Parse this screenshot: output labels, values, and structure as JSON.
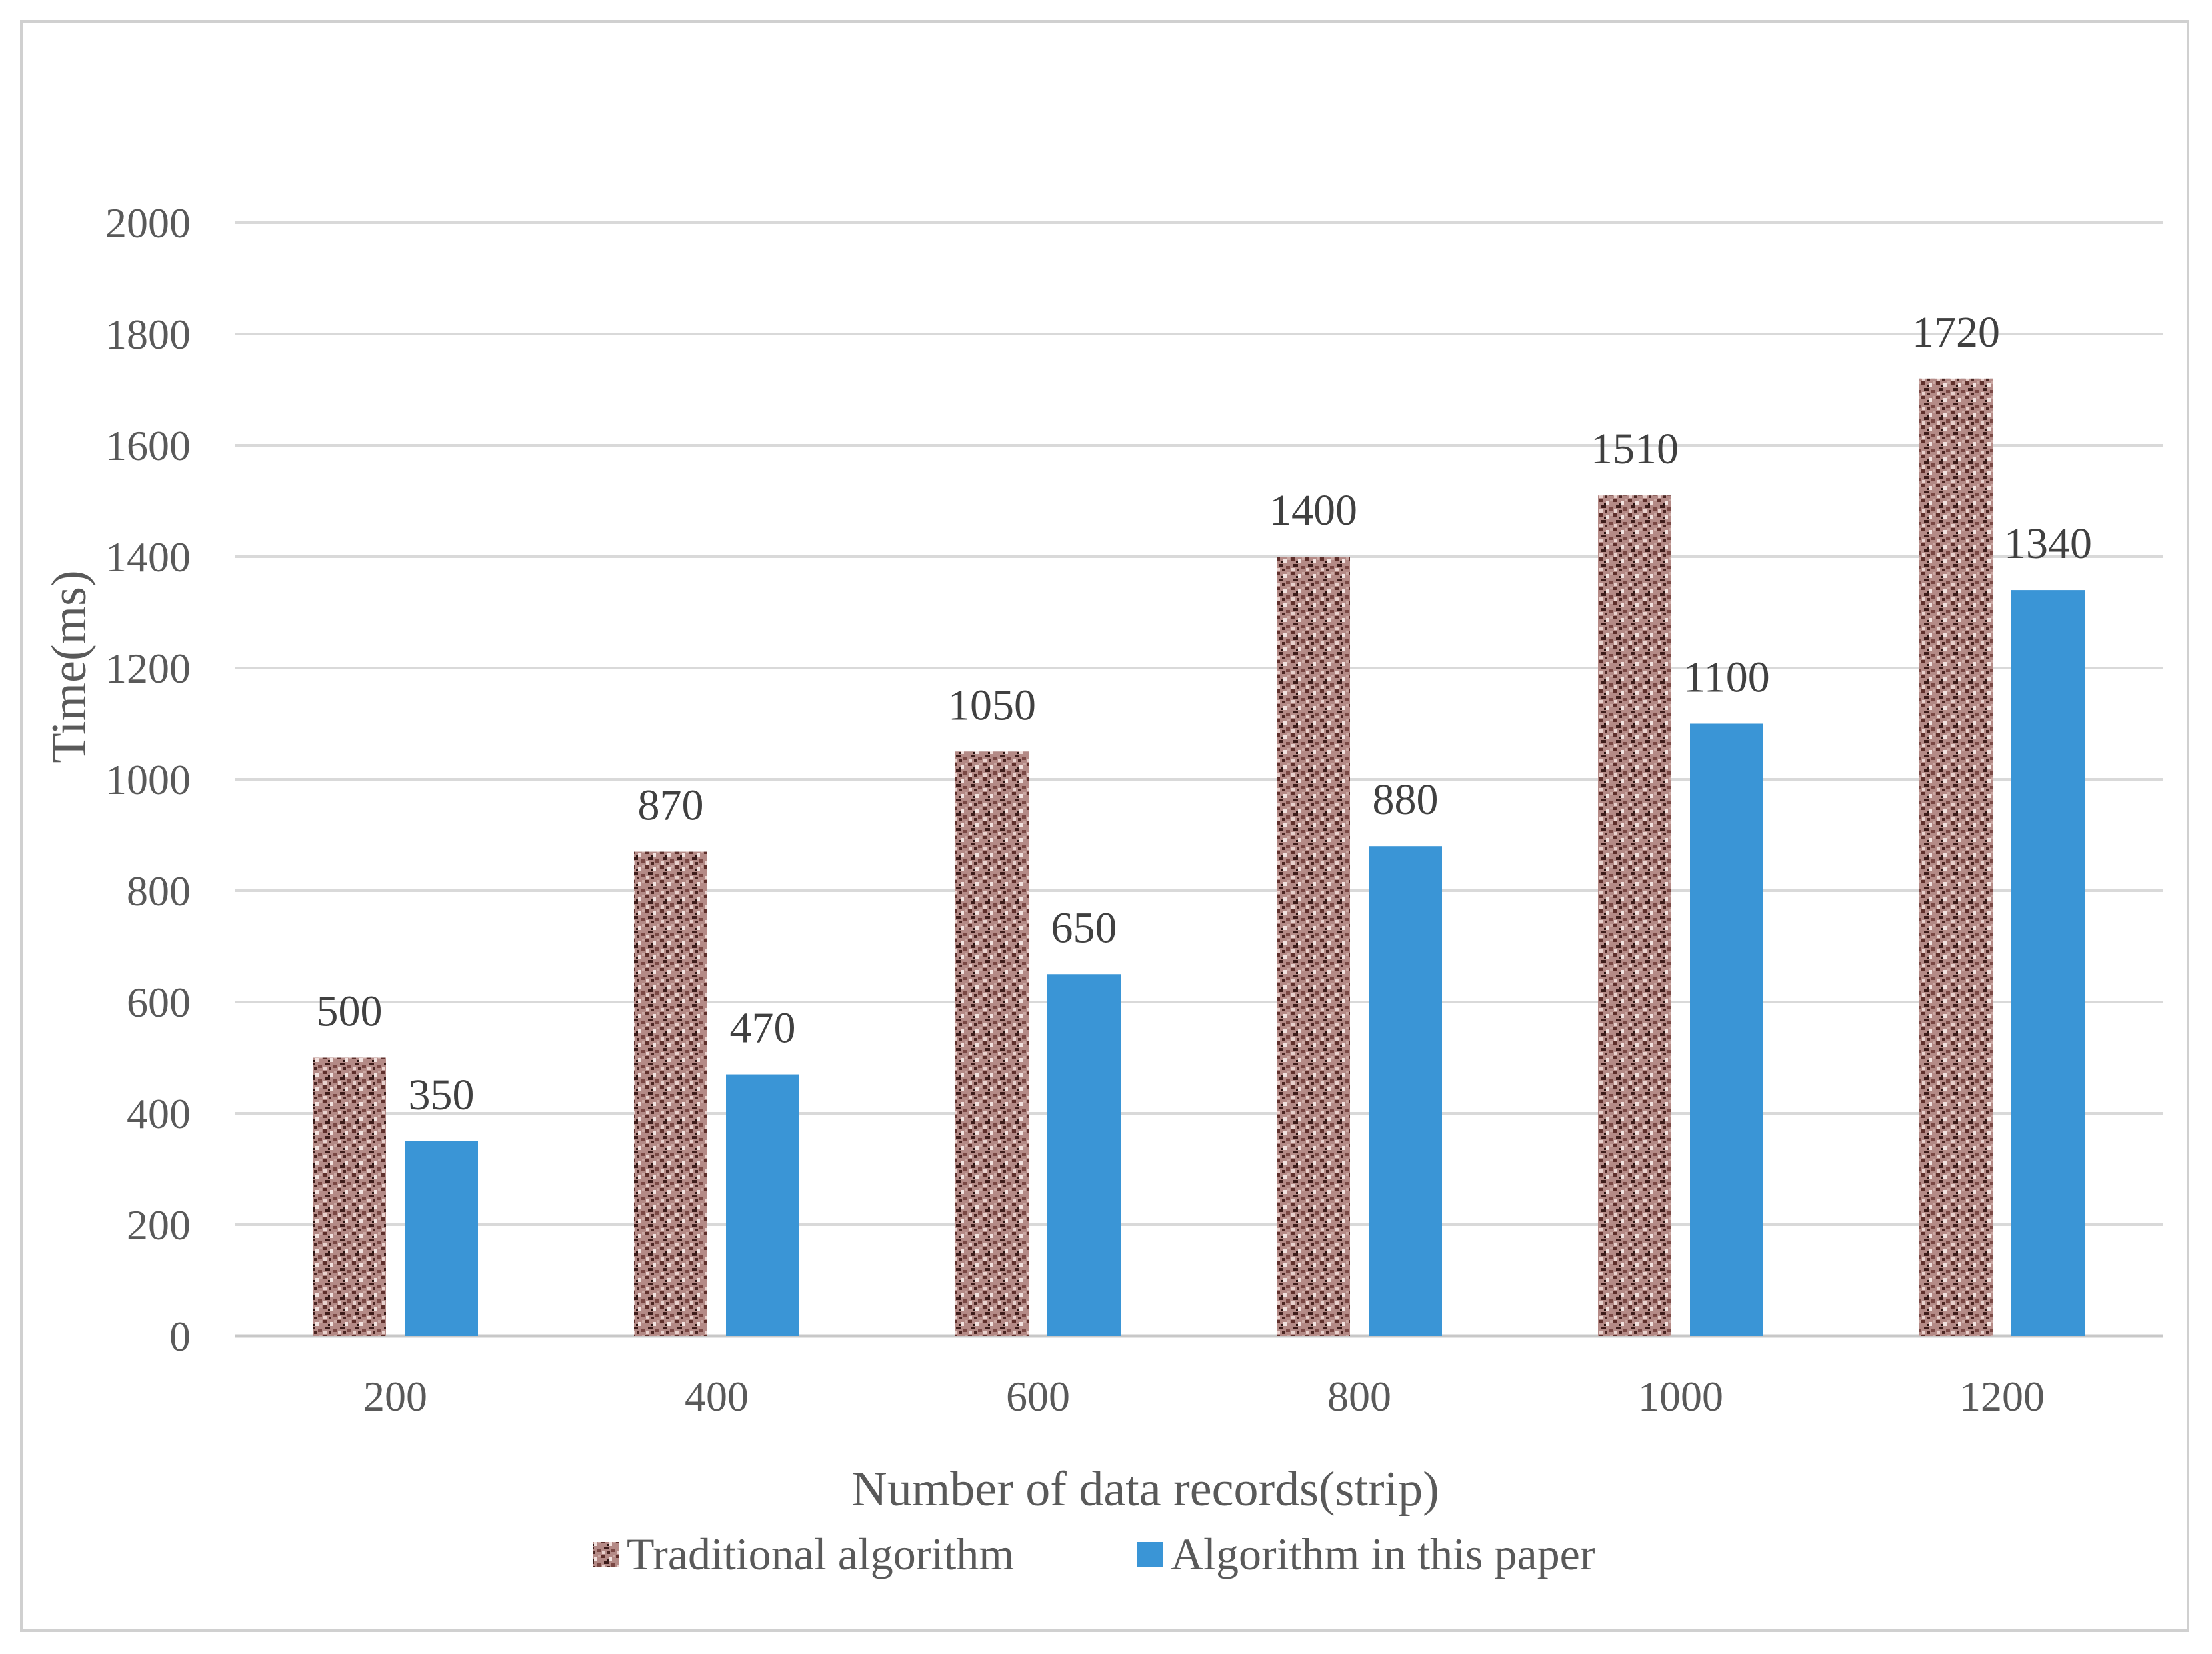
{
  "chart_data": {
    "type": "bar",
    "categories": [
      "200",
      "400",
      "600",
      "800",
      "1000",
      "1200"
    ],
    "series": [
      {
        "name": "Traditional algorithm",
        "values": [
          500,
          870,
          1050,
          1400,
          1510,
          1720
        ],
        "color": "#8c5a5a",
        "pattern": "textured"
      },
      {
        "name": "Algorithm in this paper",
        "values": [
          350,
          470,
          650,
          880,
          1100,
          1340
        ],
        "color": "#3a95d6"
      }
    ],
    "xlabel": "Number of data records(strip)",
    "ylabel": "Time(ms)",
    "ylim": [
      0,
      2000
    ],
    "yticks": [
      0,
      200,
      400,
      600,
      800,
      1000,
      1200,
      1400,
      1600,
      1800,
      2000
    ],
    "grid": true,
    "legend_position": "bottom"
  }
}
